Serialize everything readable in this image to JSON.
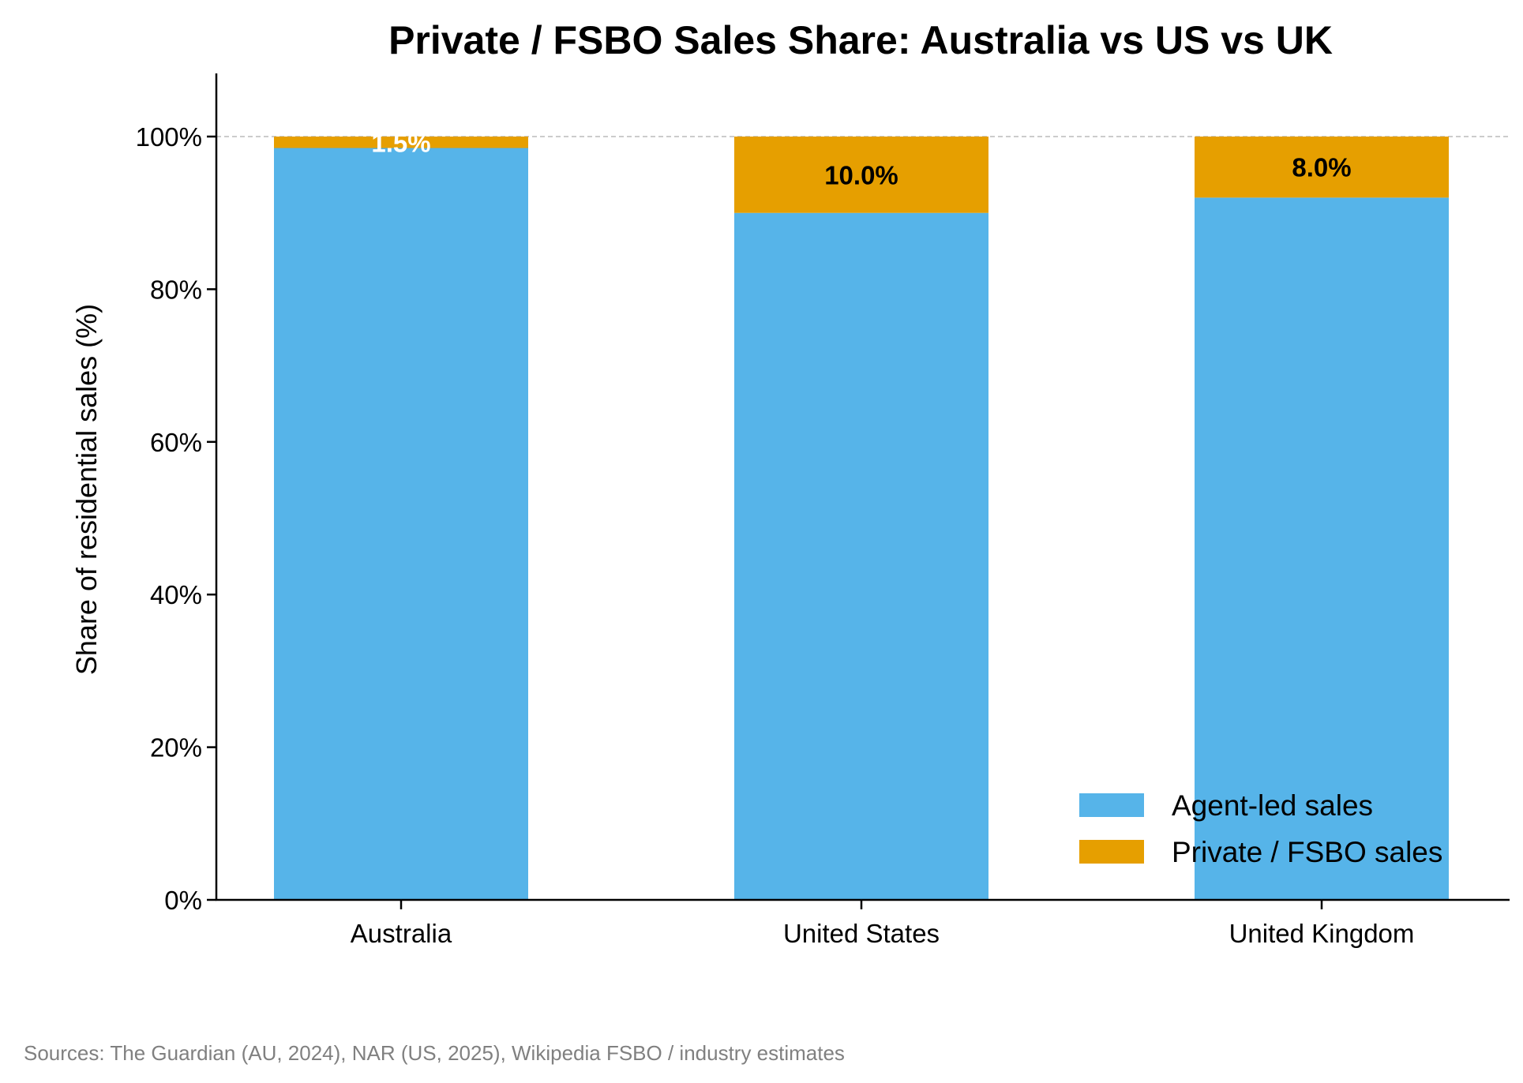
{
  "chart_data": {
    "type": "bar",
    "stacked": true,
    "title": "Private / FSBO Sales Share: Australia vs US vs UK",
    "xlabel": "",
    "ylabel": "Share of residential sales (%)",
    "ylim": [
      0,
      108
    ],
    "yticks": [
      0,
      20,
      40,
      60,
      80,
      100
    ],
    "ytick_labels": [
      "0%",
      "20%",
      "40%",
      "60%",
      "80%",
      "100%"
    ],
    "categories": [
      "Australia",
      "United States",
      "United Kingdom"
    ],
    "series": [
      {
        "name": "Agent-led sales",
        "values": [
          98.5,
          90.0,
          92.0
        ],
        "color": "#56B4E9"
      },
      {
        "name": "Private / FSBO sales",
        "values": [
          1.5,
          10.0,
          8.0
        ],
        "color": "#E69F00"
      }
    ],
    "data_labels": [
      "1.5%",
      "10.0%",
      "8.0%"
    ],
    "data_label_colors": [
      "#ffffff",
      "#000000",
      "#000000"
    ],
    "reference_line": {
      "y": 100,
      "style": "dashed",
      "color": "#bbbbbb"
    },
    "legend": {
      "position": "bottom-right"
    },
    "grid": false
  },
  "footer": {
    "source": "Sources: The Guardian (AU, 2024), NAR (US, 2025), Wikipedia FSBO / industry estimates"
  }
}
